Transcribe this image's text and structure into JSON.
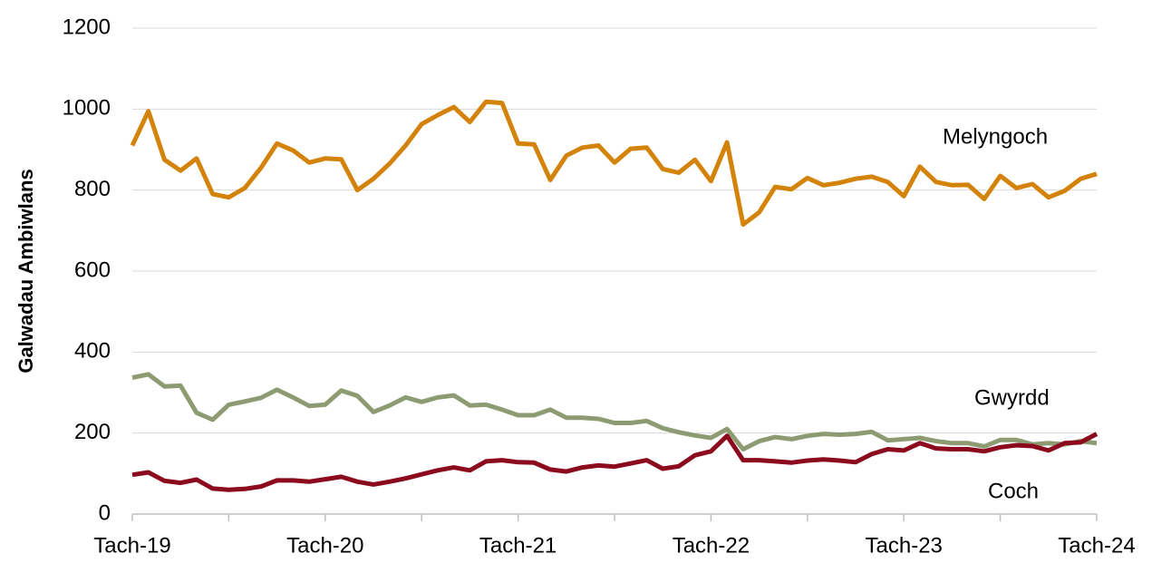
{
  "chart_data": {
    "type": "line",
    "ylabel": "Galwadau Ambiwlans",
    "categories": [
      "Tach-19",
      null,
      null,
      null,
      null,
      null,
      null,
      null,
      null,
      null,
      null,
      null,
      "Tach-20",
      null,
      null,
      null,
      null,
      null,
      null,
      null,
      null,
      null,
      null,
      null,
      "Tach-21",
      null,
      null,
      null,
      null,
      null,
      null,
      null,
      null,
      null,
      null,
      null,
      "Tach-22",
      null,
      null,
      null,
      null,
      null,
      null,
      null,
      null,
      null,
      null,
      null,
      "Tach-23",
      null,
      null,
      null,
      null,
      null,
      null,
      null,
      null,
      null,
      null,
      null,
      "Tach-24"
    ],
    "series": [
      {
        "name": "Melyngoch",
        "color": "#d4830a",
        "values": [
          910,
          995,
          875,
          848,
          878,
          790,
          782,
          805,
          855,
          915,
          898,
          868,
          878,
          876,
          800,
          828,
          865,
          910,
          963,
          985,
          1005,
          968,
          1018,
          1015,
          915,
          913,
          825,
          885,
          905,
          910,
          868,
          902,
          905,
          852,
          843,
          875,
          822,
          918,
          715,
          745,
          808,
          802,
          830,
          812,
          818,
          828,
          833,
          820,
          785,
          858,
          820,
          812,
          813,
          778,
          835,
          805,
          815,
          782,
          798,
          828,
          840
        ]
      },
      {
        "name": "Gwyrdd",
        "color": "#8e9b72",
        "values": [
          337,
          345,
          315,
          317,
          250,
          233,
          270,
          278,
          287,
          307,
          288,
          267,
          270,
          305,
          292,
          252,
          268,
          288,
          277,
          288,
          293,
          268,
          270,
          258,
          244,
          244,
          258,
          238,
          238,
          235,
          225,
          225,
          230,
          212,
          202,
          194,
          188,
          210,
          160,
          180,
          190,
          185,
          193,
          198,
          196,
          198,
          203,
          182,
          185,
          188,
          180,
          175,
          175,
          167,
          183,
          183,
          172,
          175,
          172,
          180,
          175
        ]
      },
      {
        "name": "Coch",
        "color": "#8b0a1e",
        "values": [
          97,
          103,
          82,
          77,
          85,
          63,
          60,
          62,
          68,
          83,
          83,
          80,
          86,
          92,
          80,
          73,
          80,
          88,
          98,
          108,
          115,
          108,
          130,
          133,
          128,
          127,
          110,
          105,
          115,
          120,
          117,
          125,
          133,
          112,
          118,
          145,
          155,
          193,
          133,
          133,
          130,
          127,
          132,
          135,
          132,
          128,
          148,
          160,
          157,
          175,
          162,
          160,
          160,
          155,
          165,
          170,
          168,
          157,
          175,
          177,
          198
        ]
      }
    ],
    "ylim": [
      0,
      1200
    ],
    "yticks": [
      0,
      200,
      400,
      600,
      800,
      1000,
      1200
    ],
    "grid": true
  }
}
